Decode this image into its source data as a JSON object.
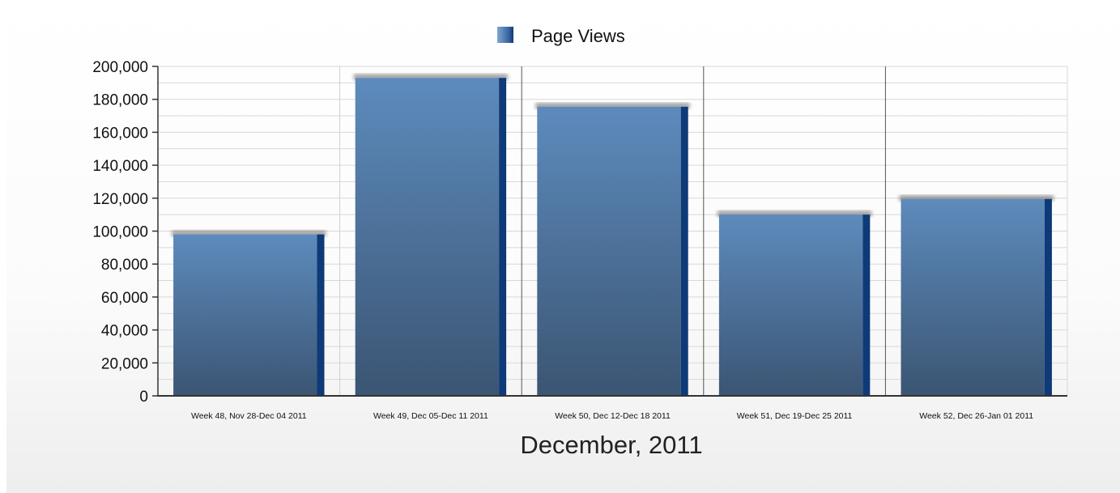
{
  "chart_data": {
    "type": "bar",
    "title": "",
    "xlabel": "December, 2011",
    "ylabel": "",
    "ylim": [
      0,
      200000
    ],
    "ytick_step": 20000,
    "ytick_labels": [
      "0",
      "20,000",
      "40,000",
      "60,000",
      "80,000",
      "100,000",
      "120,000",
      "140,000",
      "160,000",
      "180,000",
      "200,000"
    ],
    "categories": [
      "Week 48, Nov 28-Dec 04 2011",
      "Week 49, Dec 05-Dec 11 2011",
      "Week 50, Dec 12-Dec 18 2011",
      "Week 51, Dec 19-Dec 25 2011",
      "Week 52, Dec 26-Jan 01 2011"
    ],
    "series": [
      {
        "name": "Page Views",
        "values": [
          98000,
          193000,
          175500,
          110000,
          119500
        ],
        "color": "#4a6f99"
      }
    ],
    "legend_position": "top-center",
    "grid": true,
    "colors": {
      "bar_top": "#5d8bbd",
      "bar_bottom": "#3b5573",
      "bar_side": "#0e3a77",
      "grid": "#d8d8d8",
      "divider": "#555555",
      "axis": "#333333"
    }
  }
}
